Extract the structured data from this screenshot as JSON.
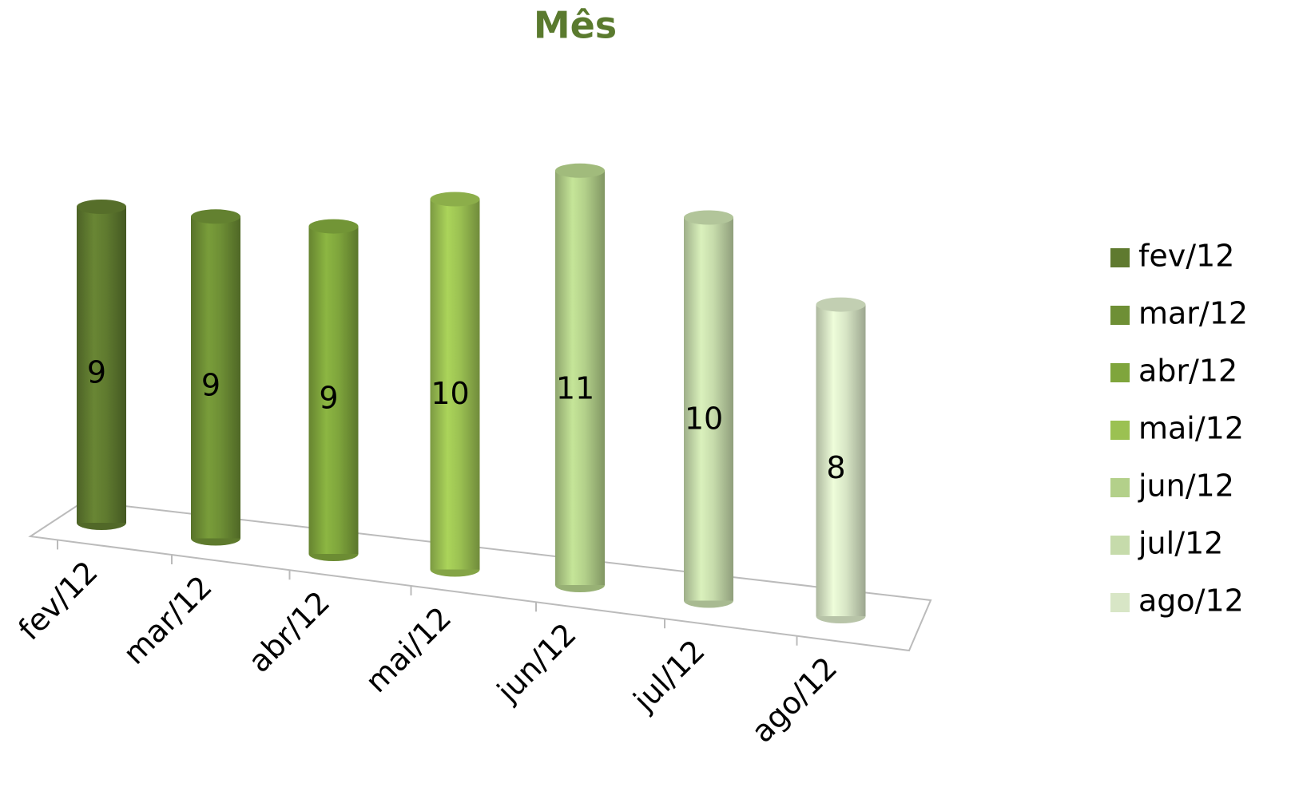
{
  "chart_data": {
    "type": "bar",
    "title": "Mês",
    "categories": [
      "fev/12",
      "mar/12",
      "abr/12",
      "mai/12",
      "jun/12",
      "jul/12",
      "ago/12"
    ],
    "values": [
      9,
      9,
      9,
      10,
      11,
      10,
      8
    ],
    "colors": [
      "#5f7a2f",
      "#6e8f35",
      "#7fa53c",
      "#9bc152",
      "#b3d08a",
      "#c6dbab",
      "#d8e6c6"
    ],
    "legend": "right"
  }
}
